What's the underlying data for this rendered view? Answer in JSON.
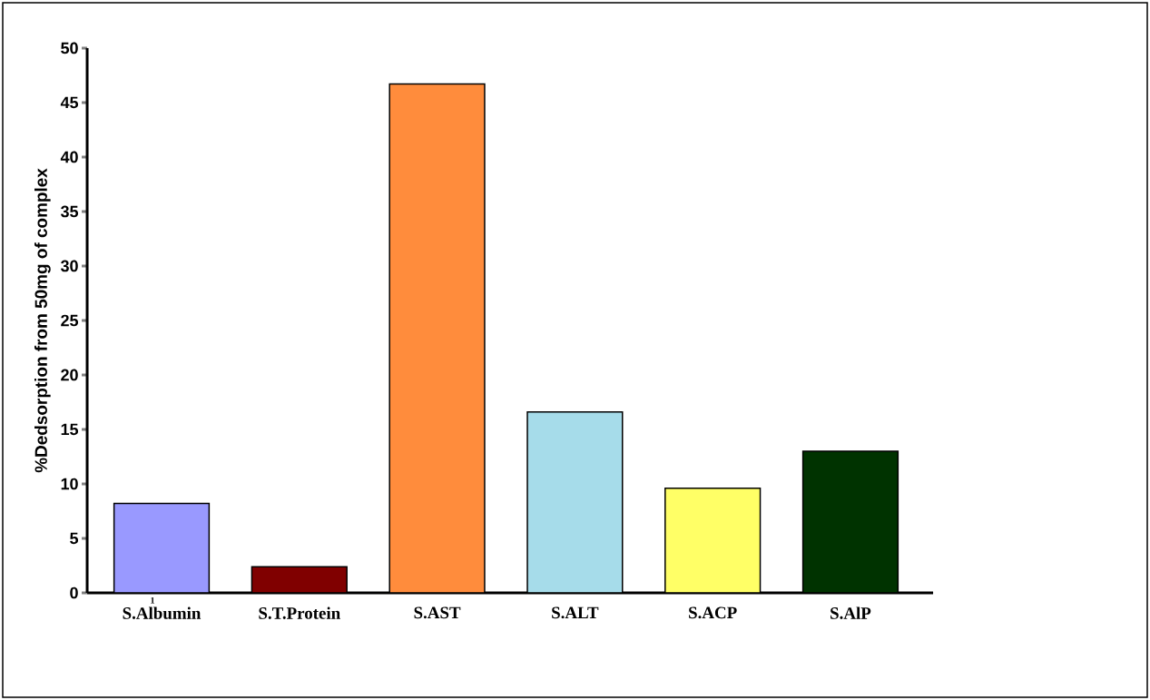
{
  "chart_data": {
    "type": "bar",
    "ylabel": "%Dedsorption  from 50mg of complex",
    "categories": [
      "S.Albumin",
      "S.T.Protein",
      "S.AST",
      "S.ALT",
      "S.ACP",
      "S.AlP"
    ],
    "values": [
      8.2,
      2.4,
      46.7,
      16.6,
      9.6,
      13.0
    ],
    "colors": [
      "#9999ff",
      "#800000",
      "#ff8c3c",
      "#a6dcea",
      "#ffff66",
      "#003300"
    ],
    "ylim": [
      0,
      50
    ],
    "yticks": [
      0,
      5,
      10,
      15,
      20,
      25,
      30,
      35,
      40,
      45,
      50
    ],
    "annotations": [
      "1"
    ],
    "grid": false
  }
}
